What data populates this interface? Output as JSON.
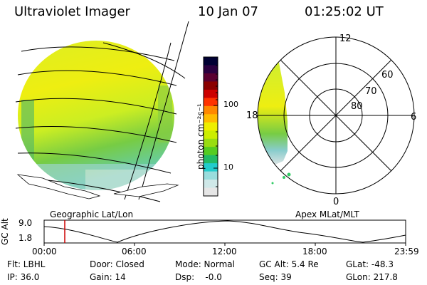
{
  "header": {
    "title": "Ultraviolet Imager",
    "date": "10 Jan 07",
    "time": "01:25:02 UT"
  },
  "geo_panel": {
    "label": "Geographic Lat/Lon"
  },
  "polar_panel": {
    "label": "Apex MLat/MLT",
    "mlt_labels": [
      "12",
      "6",
      "0",
      "18"
    ],
    "lat_labels": [
      "60",
      "70",
      "80"
    ]
  },
  "colorbar": {
    "unit_label": "photon cm⁻²s⁻¹",
    "ticks": [
      "100",
      "10"
    ],
    "colors": [
      "#000033",
      "#2a003f",
      "#5a0030",
      "#8b0000",
      "#cc0000",
      "#ff3300",
      "#ff8800",
      "#ffbb00",
      "#eeee00",
      "#ccee00",
      "#99dd11",
      "#55cc22",
      "#22bb66",
      "#22cccc",
      "#99dddd",
      "#cfe8e8",
      "#e6e6e6"
    ]
  },
  "alt_plot": {
    "y_label": "GC Alt",
    "y_ticks": [
      "9.0",
      "1.8"
    ],
    "x_ticks": [
      "00:00",
      "06:00",
      "12:00",
      "18:00",
      "23:59"
    ],
    "current_time_marker_color": "#cc0000"
  },
  "info": {
    "flt": "Flt: LBHL",
    "ip": "IP: 36.0",
    "door": "Door: Closed",
    "gain": "Gain: 14",
    "mode": "Mode: Normal",
    "dsp": "Dsp:    -0.0",
    "gcalt": "GC Alt: 5.4 Re",
    "seq": "Seq: 39",
    "glat": "GLat: -48.3",
    "glon": "GLon: 217.8"
  }
}
